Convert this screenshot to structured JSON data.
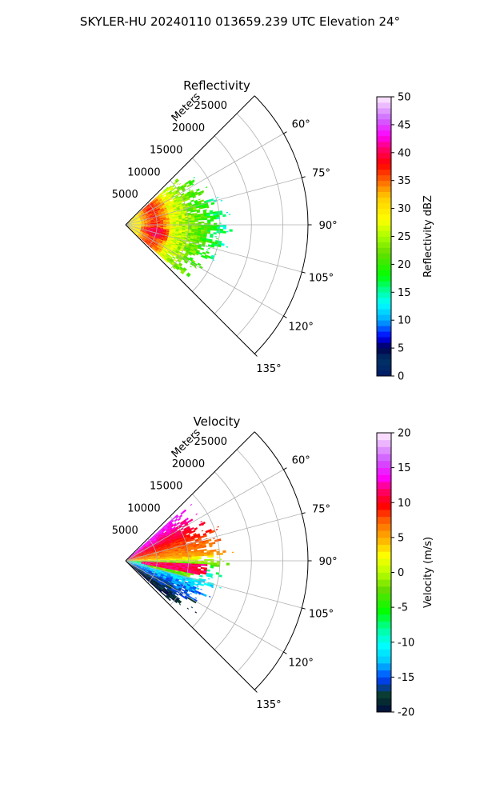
{
  "suptitle": "SKYLER-HU  20240110  013659.239 UTC Elevation 24°",
  "chart_data": [
    {
      "type": "heatmap",
      "projection": "polar-sector",
      "title": "Reflectivity",
      "radial_axis_label": "Meters",
      "theta_range_deg": [
        45,
        135
      ],
      "theta_ticks": [
        "60°",
        "75°",
        "90°",
        "105°",
        "120°",
        "135°"
      ],
      "theta_tick_values": [
        60,
        75,
        90,
        105,
        120,
        135
      ],
      "r_range": [
        0,
        29000
      ],
      "r_ticks": [
        "5000",
        "10000",
        "15000",
        "20000",
        "25000"
      ],
      "r_tick_values": [
        5000,
        10000,
        15000,
        20000,
        25000
      ],
      "grid": true,
      "colorbar": {
        "label": "Reflectivity dBZ",
        "range": [
          0,
          50
        ],
        "ticks": [
          "0",
          "5",
          "10",
          "15",
          "20",
          "25",
          "30",
          "35",
          "40",
          "45",
          "50"
        ],
        "colormap": "NWS reflectivity (blue-cyan-green-yellow-red-magenta-white)"
      },
      "data_extent_m": 16000,
      "data_summary": "Reflectivity 25-38 dBZ near the radar (0-7 km), decreasing to 13-22 dBZ at 10-16 km."
    },
    {
      "type": "heatmap",
      "projection": "polar-sector",
      "title": "Velocity",
      "radial_axis_label": "Meters",
      "theta_range_deg": [
        45,
        135
      ],
      "theta_ticks": [
        "60°",
        "75°",
        "90°",
        "105°",
        "120°",
        "135°"
      ],
      "theta_tick_values": [
        60,
        75,
        90,
        105,
        120,
        135
      ],
      "r_range": [
        0,
        29000
      ],
      "r_ticks": [
        "5000",
        "10000",
        "15000",
        "20000",
        "25000"
      ],
      "r_tick_values": [
        5000,
        10000,
        15000,
        20000,
        25000
      ],
      "grid": true,
      "colorbar": {
        "label": "Velocity (m/s)",
        "range": [
          -20,
          20
        ],
        "ticks": [
          "-20",
          "-15",
          "-10",
          "-5",
          "0",
          "5",
          "10",
          "15",
          "20"
        ],
        "colormap": "velocity (navy-blue-cyan-green-yellow-orange-red-magenta-white)"
      },
      "data_extent_m": 16000,
      "data_summary": "Velocities about +5 to +10 m/s at azimuths 60-85°, near 0 m/s around 90-95°, and -10 to -15 m/s at azimuths 100-120°."
    }
  ]
}
